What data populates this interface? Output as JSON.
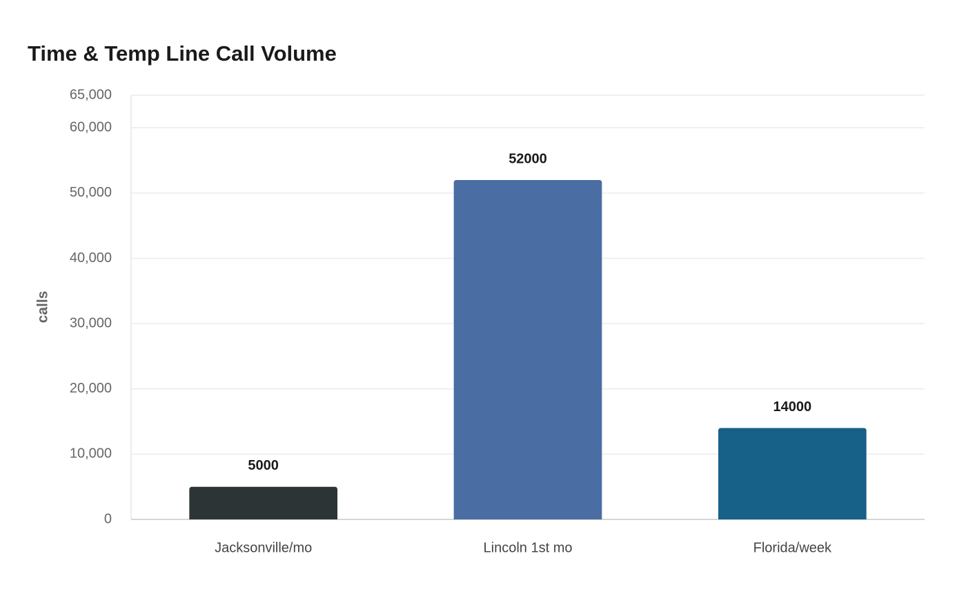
{
  "chart_data": {
    "type": "bar",
    "title": "Time & Temp Line Call Volume",
    "y_label": "calls",
    "categories": [
      "Jacksonville/mo",
      "Lincoln 1st mo",
      "Florida/week"
    ],
    "values": [
      5000,
      52000,
      14000
    ],
    "colors": [
      "#2d3436",
      "#4a6da3",
      "#176087"
    ],
    "ylim": [
      0,
      65000
    ],
    "yticks": [
      0,
      {
        "value": 10000,
        "label": "10,000"
      },
      {
        "value": 20000,
        "label": "20,000"
      },
      {
        "value": 30000,
        "label": "30,000"
      },
      {
        "value": 40000,
        "label": "40,000"
      },
      {
        "value": 50000,
        "label": "50,000"
      },
      {
        "value": 60000,
        "label": "60,000"
      },
      {
        "value": 65000,
        "label": "65,000"
      }
    ],
    "grid": true
  }
}
